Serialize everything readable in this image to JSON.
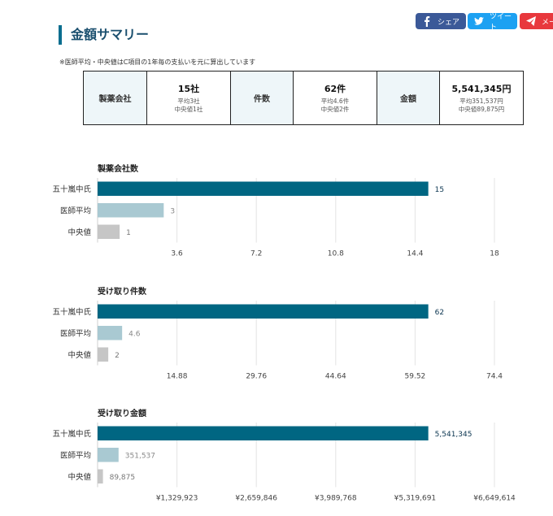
{
  "share": {
    "facebook": "シェア",
    "twitter": "ツイート",
    "line": "メー"
  },
  "page_title": "金額サマリー",
  "note": "※医師平均・中央値はC項目の1年毎の支払いを元に算出しています",
  "summary": [
    {
      "label": "製薬会社",
      "value": "15社",
      "sub1": "平均3社",
      "sub2": "中央値1社"
    },
    {
      "label": "件数",
      "value": "62件",
      "sub1": "平均4.6件",
      "sub2": "中央値2件"
    },
    {
      "label": "金額",
      "value": "5,541,345円",
      "sub1": "平均351,537円",
      "sub2": "中央値89,875円"
    }
  ],
  "colors": {
    "primary": "#006682",
    "average": "#a9c9d2",
    "median": "#c6c6c6",
    "accent": "#0a6e8f"
  },
  "chart_data": [
    {
      "type": "bar",
      "orientation": "horizontal",
      "title": "製薬会社数",
      "categories": [
        "五十嵐中氏",
        "医師平均",
        "中央値"
      ],
      "values": [
        15,
        3,
        1
      ],
      "value_labels": [
        "15",
        "3",
        "1"
      ],
      "xlim": [
        0,
        18
      ],
      "ticks": [
        3.6,
        7.2,
        10.8,
        14.4,
        18
      ],
      "tick_labels": [
        "3.6",
        "7.2",
        "10.8",
        "14.4",
        "18"
      ],
      "grid": true
    },
    {
      "type": "bar",
      "orientation": "horizontal",
      "title": "受け取り件数",
      "categories": [
        "五十嵐中氏",
        "医師平均",
        "中央値"
      ],
      "values": [
        62,
        4.6,
        2
      ],
      "value_labels": [
        "62",
        "4.6",
        "2"
      ],
      "xlim": [
        0,
        74.4
      ],
      "ticks": [
        14.88,
        29.76,
        44.64,
        59.52,
        74.4
      ],
      "tick_labels": [
        "14.88",
        "29.76",
        "44.64",
        "59.52",
        "74.4"
      ],
      "grid": true
    },
    {
      "type": "bar",
      "orientation": "horizontal",
      "title": "受け取り金額",
      "categories": [
        "五十嵐中氏",
        "医師平均",
        "中央値"
      ],
      "values": [
        5541345,
        351537,
        89875
      ],
      "value_labels": [
        "5,541,345",
        "351,537",
        "89,875"
      ],
      "xlim": [
        0,
        6649614
      ],
      "ticks": [
        1329923,
        2659846,
        3989768,
        5319691,
        6649614
      ],
      "tick_labels": [
        "¥1,329,923",
        "¥2,659,846",
        "¥3,989,768",
        "¥5,319,691",
        "¥6,649,614"
      ],
      "grid": true
    }
  ]
}
